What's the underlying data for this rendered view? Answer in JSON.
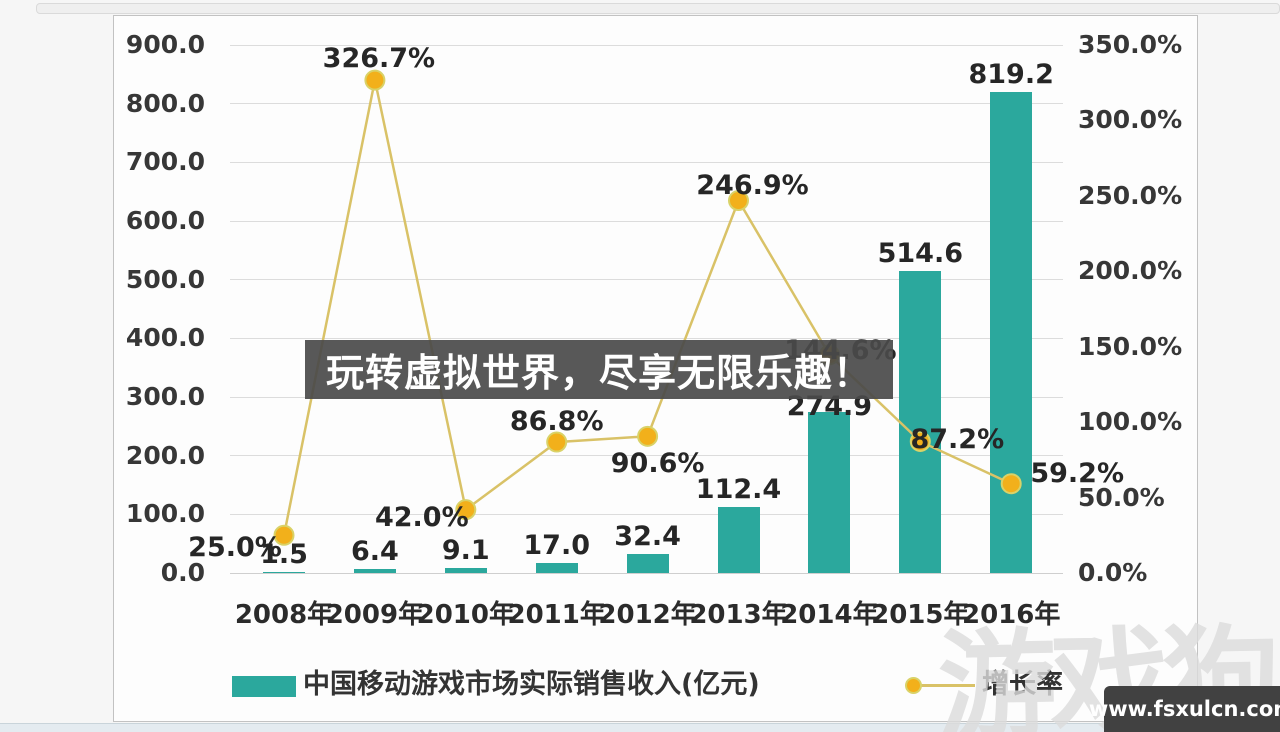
{
  "overlay": {
    "text": "玩转虚拟世界，尽享无限乐趣！"
  },
  "watermarks": {
    "logo_text": "游戏狗",
    "site_url": "www.fsxulcn.com"
  },
  "chart_data": {
    "type": "bar+line",
    "categories": [
      "2008年",
      "2009年",
      "2010年",
      "2011年",
      "2012年",
      "2013年",
      "2014年",
      "2015年",
      "2016年"
    ],
    "series": [
      {
        "name": "中国移动游戏市场实际销售收入(亿元)",
        "type": "bar",
        "axis": "left",
        "color": "#2BA89D",
        "values": [
          1.5,
          6.4,
          9.1,
          17.0,
          32.4,
          112.4,
          274.9,
          514.6,
          819.2
        ],
        "labels": [
          "1.5",
          "6.4",
          "9.1",
          "17.0",
          "32.4",
          "112.4",
          "274.9",
          "514.6",
          "819.2"
        ]
      },
      {
        "name": "增长率",
        "type": "line",
        "axis": "right",
        "line_color": "#D9C267",
        "marker_color": "#F2B01B",
        "values": [
          25.0,
          326.7,
          42.0,
          86.8,
          90.6,
          246.9,
          144.6,
          87.2,
          59.2
        ],
        "labels": [
          "25.0%",
          "326.7%",
          "42.0%",
          "86.8%",
          "90.6%",
          "246.9%",
          "144.6%",
          "87.2%",
          "59.2%"
        ]
      }
    ],
    "left_axis": {
      "min": 0,
      "max": 900,
      "step": 100,
      "tick_labels": [
        "900.0",
        "800.0",
        "700.0",
        "600.0",
        "500.0",
        "400.0",
        "300.0",
        "200.0",
        "100.0",
        "0.0"
      ]
    },
    "right_axis": {
      "min": 0,
      "max": 350,
      "step": 50,
      "tick_labels": [
        "350.0%",
        "300.0%",
        "250.0%",
        "200.0%",
        "150.0%",
        "100.0%",
        "50.0%",
        "0.0%"
      ]
    },
    "legend": [
      {
        "label": "中国移动游戏市场实际销售收入(亿元)",
        "marker": "bar"
      },
      {
        "label": "增长率",
        "marker": "line-dot"
      }
    ],
    "grid": true,
    "legend_position": "bottom"
  }
}
